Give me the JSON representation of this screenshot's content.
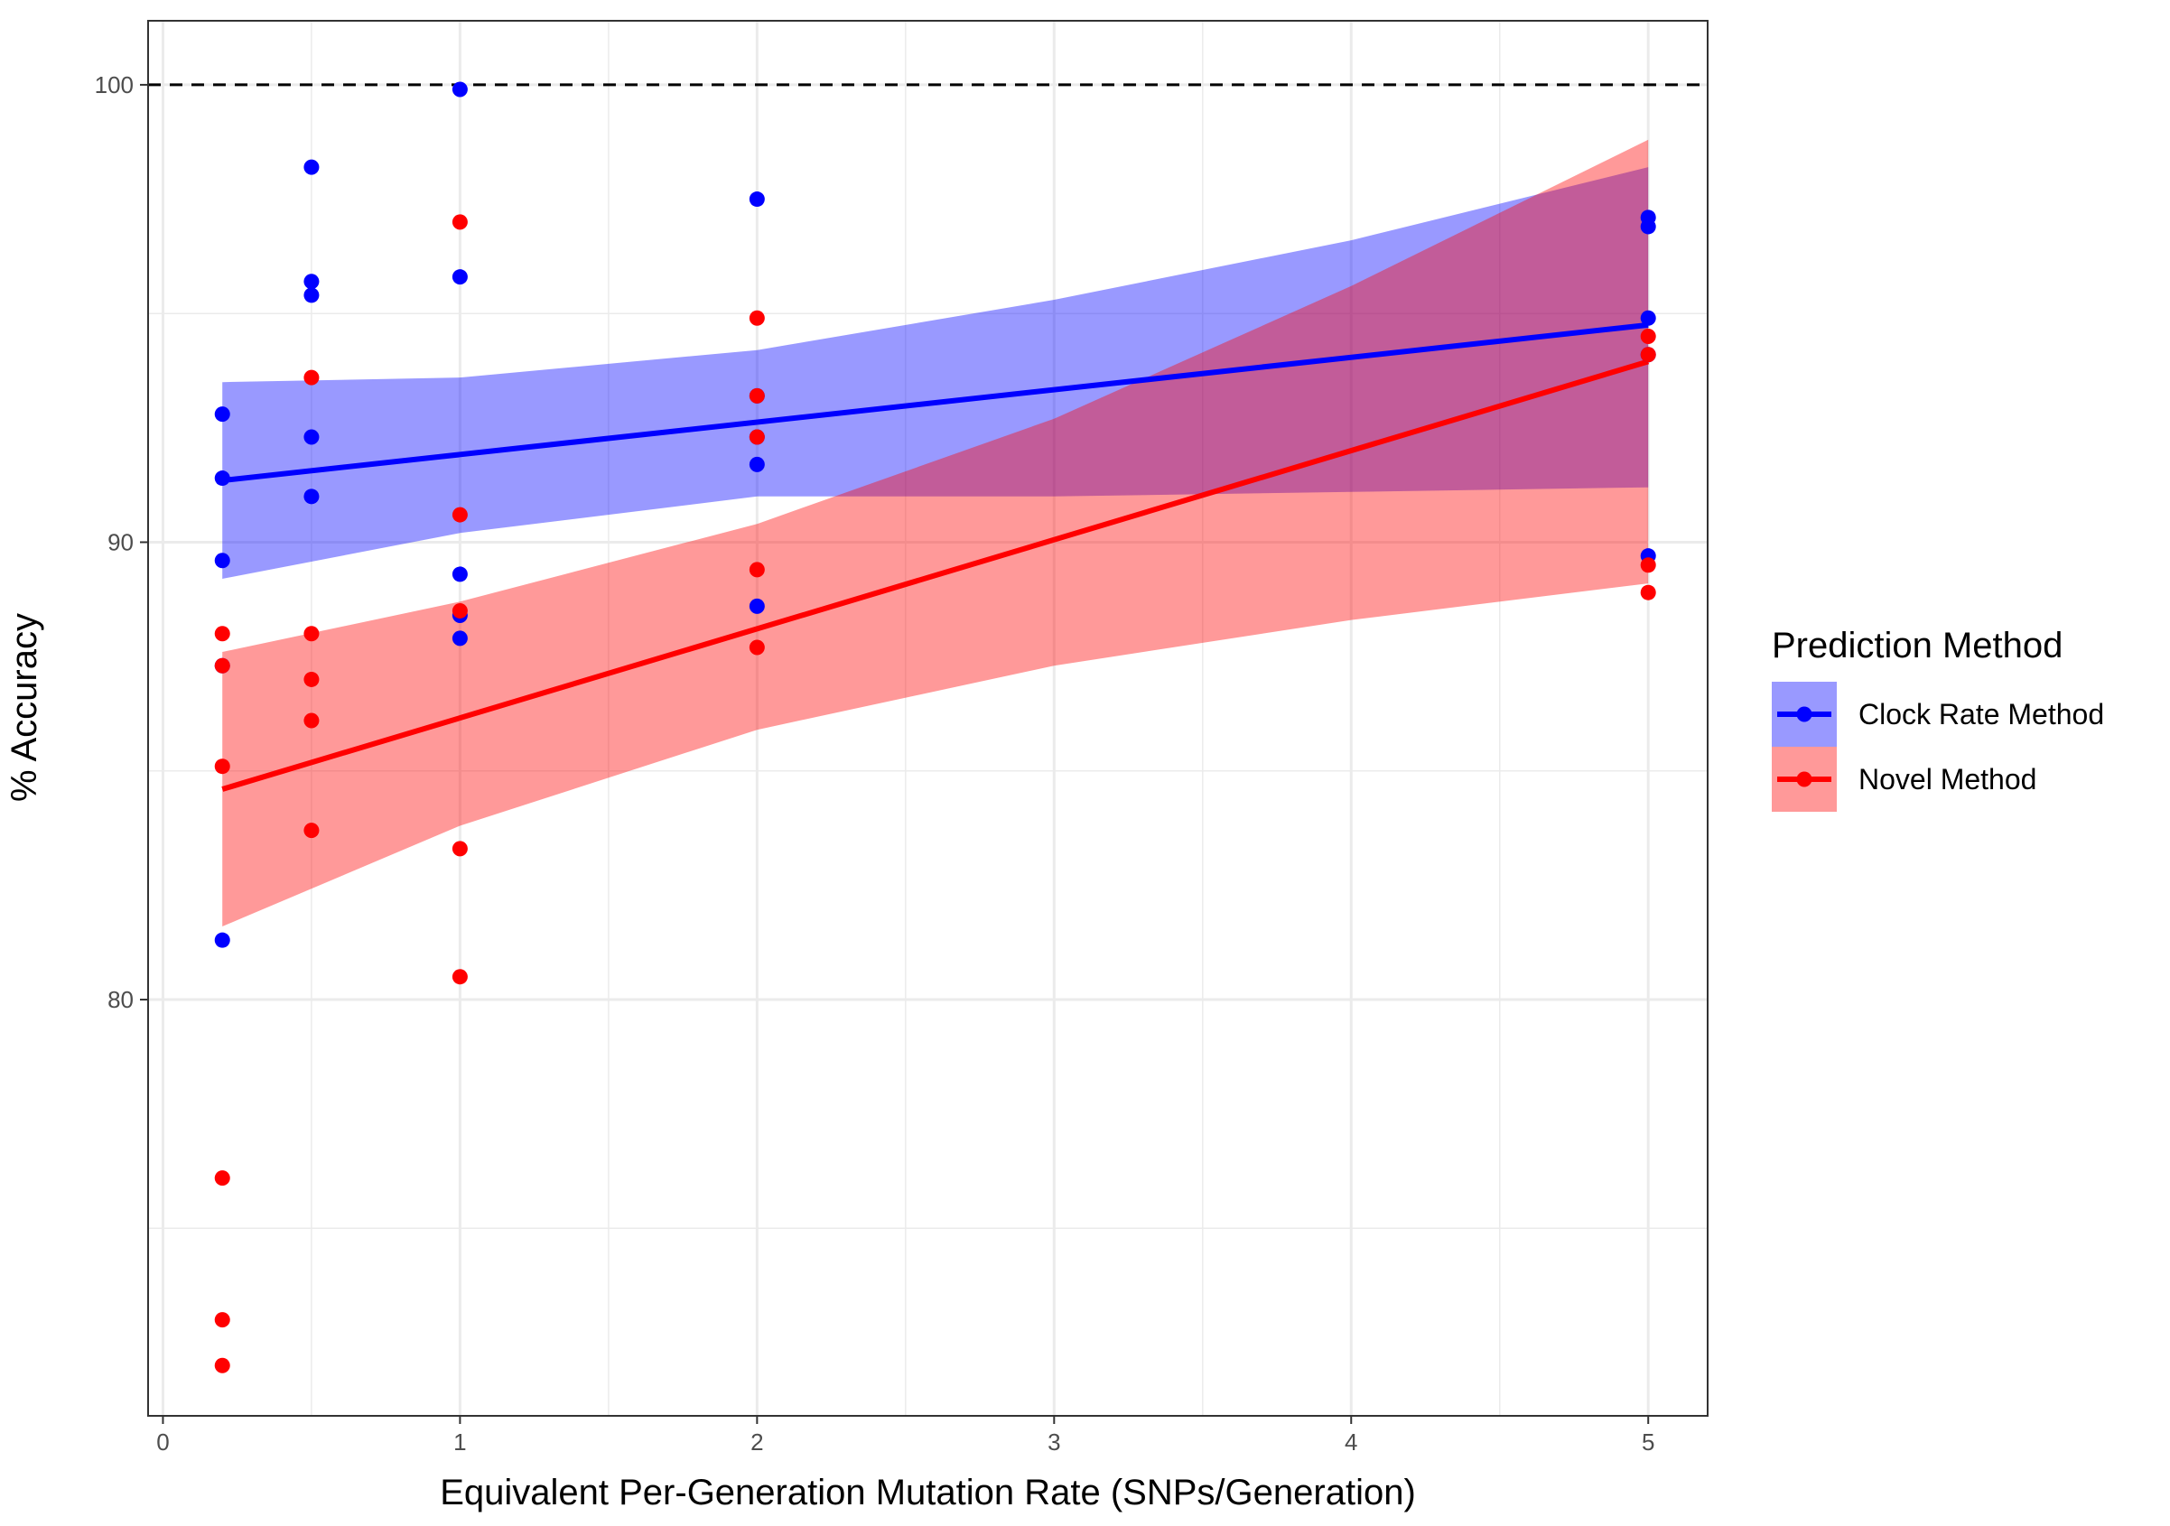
{
  "chart_data": {
    "type": "scatter",
    "xlabel": "Equivalent Per-Generation Mutation Rate (SNPs/Generation)",
    "ylabel": "% Accuracy",
    "xlim": [
      -0.05,
      5.2
    ],
    "ylim": [
      70.9,
      101.4
    ],
    "x_ticks": [
      0,
      1,
      2,
      3,
      4,
      5
    ],
    "x_tick_labels": [
      "0",
      "1",
      "2",
      "3",
      "4",
      "5"
    ],
    "y_ticks": [
      80,
      90,
      100
    ],
    "y_tick_labels": [
      "80",
      "90",
      "100"
    ],
    "x_minor_grid": [
      0.5,
      1.5,
      2.5,
      3.5,
      4.5
    ],
    "y_minor_grid": [
      75,
      85,
      95
    ],
    "grid": true,
    "reference_line": {
      "y": 100,
      "style": "dashed",
      "color": "#000000"
    },
    "legend": {
      "title": "Prediction Method",
      "position": "right"
    },
    "series": [
      {
        "name": "Clock Rate Method",
        "color": "#0000ff",
        "ribbon_color": "#0000ff",
        "points": [
          [
            0.2,
            92.8
          ],
          [
            0.2,
            91.4
          ],
          [
            0.2,
            89.6
          ],
          [
            0.2,
            87.3
          ],
          [
            0.2,
            81.3
          ],
          [
            0.5,
            98.2
          ],
          [
            0.5,
            95.7
          ],
          [
            0.5,
            95.4
          ],
          [
            0.5,
            92.3
          ],
          [
            0.5,
            91.0
          ],
          [
            1,
            99.9
          ],
          [
            1,
            95.8
          ],
          [
            1,
            89.3
          ],
          [
            1,
            88.4
          ],
          [
            1,
            87.9
          ],
          [
            2,
            97.5
          ],
          [
            2,
            93.2
          ],
          [
            2,
            92.3
          ],
          [
            2,
            91.7
          ],
          [
            2,
            88.6
          ],
          [
            5,
            97.1
          ],
          [
            5,
            96.9
          ],
          [
            5,
            94.9
          ],
          [
            5,
            94.1
          ],
          [
            5,
            89.7
          ]
        ],
        "fit": [
          [
            0.2,
            91.35
          ],
          [
            5,
            94.75
          ]
        ],
        "ribbon": {
          "x": [
            0.2,
            1,
            2,
            3,
            4,
            5
          ],
          "lower": [
            89.2,
            90.2,
            91.0,
            91.0,
            91.1,
            91.2
          ],
          "upper": [
            93.5,
            93.6,
            94.2,
            95.3,
            96.6,
            98.2
          ]
        }
      },
      {
        "name": "Novel Method",
        "color": "#ff0000",
        "ribbon_color": "#ff0000",
        "points": [
          [
            0.2,
            88.0
          ],
          [
            0.2,
            87.3
          ],
          [
            0.2,
            85.1
          ],
          [
            0.2,
            76.1
          ],
          [
            0.2,
            73.0
          ],
          [
            0.2,
            72.0
          ],
          [
            0.5,
            93.6
          ],
          [
            0.5,
            88.0
          ],
          [
            0.5,
            87.0
          ],
          [
            0.5,
            86.1
          ],
          [
            0.5,
            83.7
          ],
          [
            1,
            97.0
          ],
          [
            1,
            90.6
          ],
          [
            1,
            88.5
          ],
          [
            1,
            83.3
          ],
          [
            1,
            80.5
          ],
          [
            2,
            94.9
          ],
          [
            2,
            93.2
          ],
          [
            2,
            92.3
          ],
          [
            2,
            89.4
          ],
          [
            2,
            87.7
          ],
          [
            5,
            94.5
          ],
          [
            5,
            94.1
          ],
          [
            5,
            89.5
          ],
          [
            5,
            88.9
          ]
        ],
        "fit": [
          [
            0.2,
            84.6
          ],
          [
            5,
            93.95
          ]
        ],
        "ribbon": {
          "x": [
            0.2,
            1,
            2,
            3,
            4,
            5
          ],
          "lower": [
            81.6,
            83.8,
            85.9,
            87.3,
            88.3,
            89.1
          ],
          "upper": [
            87.6,
            88.7,
            90.4,
            92.7,
            95.6,
            98.8
          ]
        }
      }
    ]
  }
}
